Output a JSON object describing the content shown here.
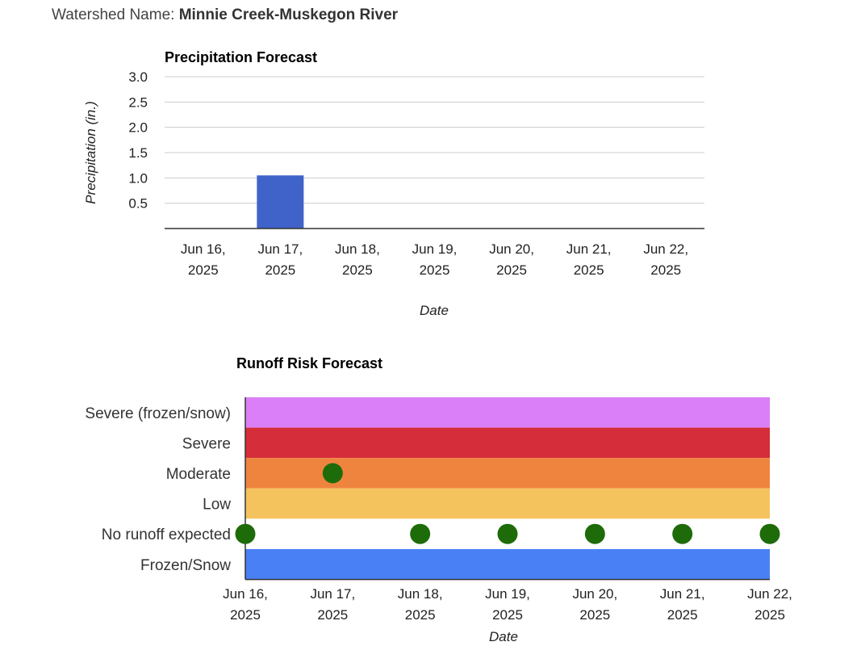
{
  "watershed": {
    "label": "Watershed Name:",
    "name": "Minnie Creek-Muskegon River"
  },
  "chart_data": [
    {
      "type": "bar",
      "title": "Precipitation Forecast",
      "xlabel": "Date",
      "ylabel": "Precipitation (in.)",
      "ylim": [
        0,
        3.0
      ],
      "yticks": [
        "3.0",
        "2.5",
        "2.0",
        "1.5",
        "1.0",
        "0.5"
      ],
      "categories": [
        [
          "Jun 16,",
          "2025"
        ],
        [
          "Jun 17,",
          "2025"
        ],
        [
          "Jun 18,",
          "2025"
        ],
        [
          "Jun 19,",
          "2025"
        ],
        [
          "Jun 20,",
          "2025"
        ],
        [
          "Jun 21,",
          "2025"
        ],
        [
          "Jun 22,",
          "2025"
        ]
      ],
      "values": [
        0,
        1.05,
        0,
        0,
        0,
        0,
        0
      ],
      "bar_color": "#3f63c9",
      "grid": true
    },
    {
      "type": "scatter",
      "title": "Runoff Risk Forecast",
      "xlabel": "Date",
      "x": [
        [
          "Jun 16,",
          "2025"
        ],
        [
          "Jun 17,",
          "2025"
        ],
        [
          "Jun 18,",
          "2025"
        ],
        [
          "Jun 19,",
          "2025"
        ],
        [
          "Jun 20,",
          "2025"
        ],
        [
          "Jun 21,",
          "2025"
        ],
        [
          "Jun 22,",
          "2025"
        ]
      ],
      "levels": [
        {
          "label": "Severe (frozen/snow)",
          "color": "#da7ff7"
        },
        {
          "label": "Severe",
          "color": "#d62d3a"
        },
        {
          "label": "Moderate",
          "color": "#ef843e"
        },
        {
          "label": "Low",
          "color": "#f5c35e"
        },
        {
          "label": "No runoff expected",
          "color": "#ffffff"
        },
        {
          "label": "Frozen/Snow",
          "color": "#4a80f5"
        }
      ],
      "values": [
        "No runoff expected",
        "Moderate",
        "No runoff expected",
        "No runoff expected",
        "No runoff expected",
        "No runoff expected",
        "No runoff expected"
      ],
      "point_color": "#1e6b0a"
    }
  ]
}
